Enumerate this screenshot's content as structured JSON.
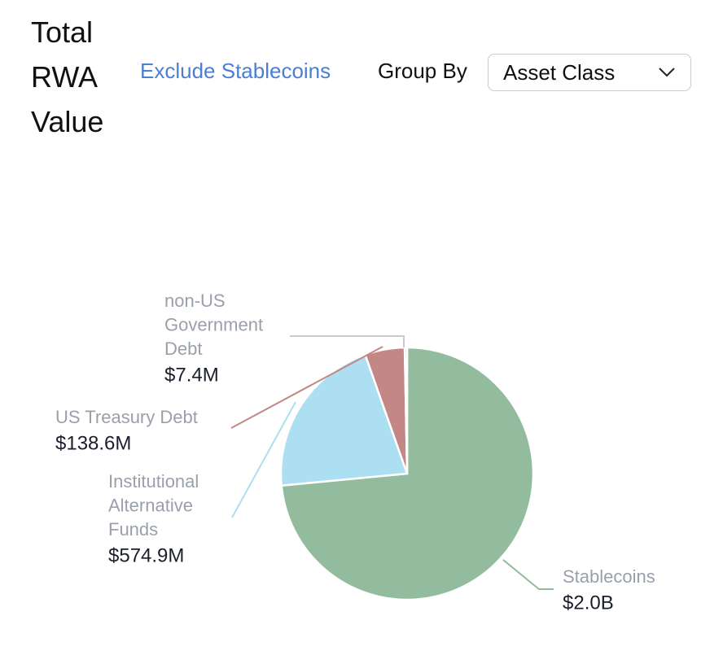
{
  "header": {
    "title_lines": [
      "Total",
      "RWA",
      "Value"
    ],
    "exclude_label": "Exclude Stablecoins",
    "group_by_label": "Group By",
    "group_by_selected": "Asset Class"
  },
  "colors": {
    "accent_link": "#4a7fd4"
  },
  "chart_data": {
    "type": "pie",
    "slices": [
      {
        "name": "Stablecoins",
        "value": 2000000000,
        "display": "$2.0B",
        "color": "#93bb9e",
        "name_lines": [
          "Stablecoins"
        ]
      },
      {
        "name": "Institutional Alternative Funds",
        "value": 574900000,
        "display": "$574.9M",
        "color": "#acdff2",
        "name_lines": [
          "Institutional",
          "Alternative",
          "Funds"
        ]
      },
      {
        "name": "US Treasury Debt",
        "value": 138600000,
        "display": "$138.6M",
        "color": "#c38785",
        "name_lines": [
          "US Treasury Debt"
        ]
      },
      {
        "name": "non-US Government Debt",
        "value": 7400000,
        "display": "$7.4M",
        "color": "#c7cbd1",
        "name_lines": [
          "non-US",
          "Government",
          "Debt"
        ]
      }
    ],
    "start_angle": "12 o'clock",
    "direction": "clockwise",
    "labels": "outside with leader lines"
  }
}
